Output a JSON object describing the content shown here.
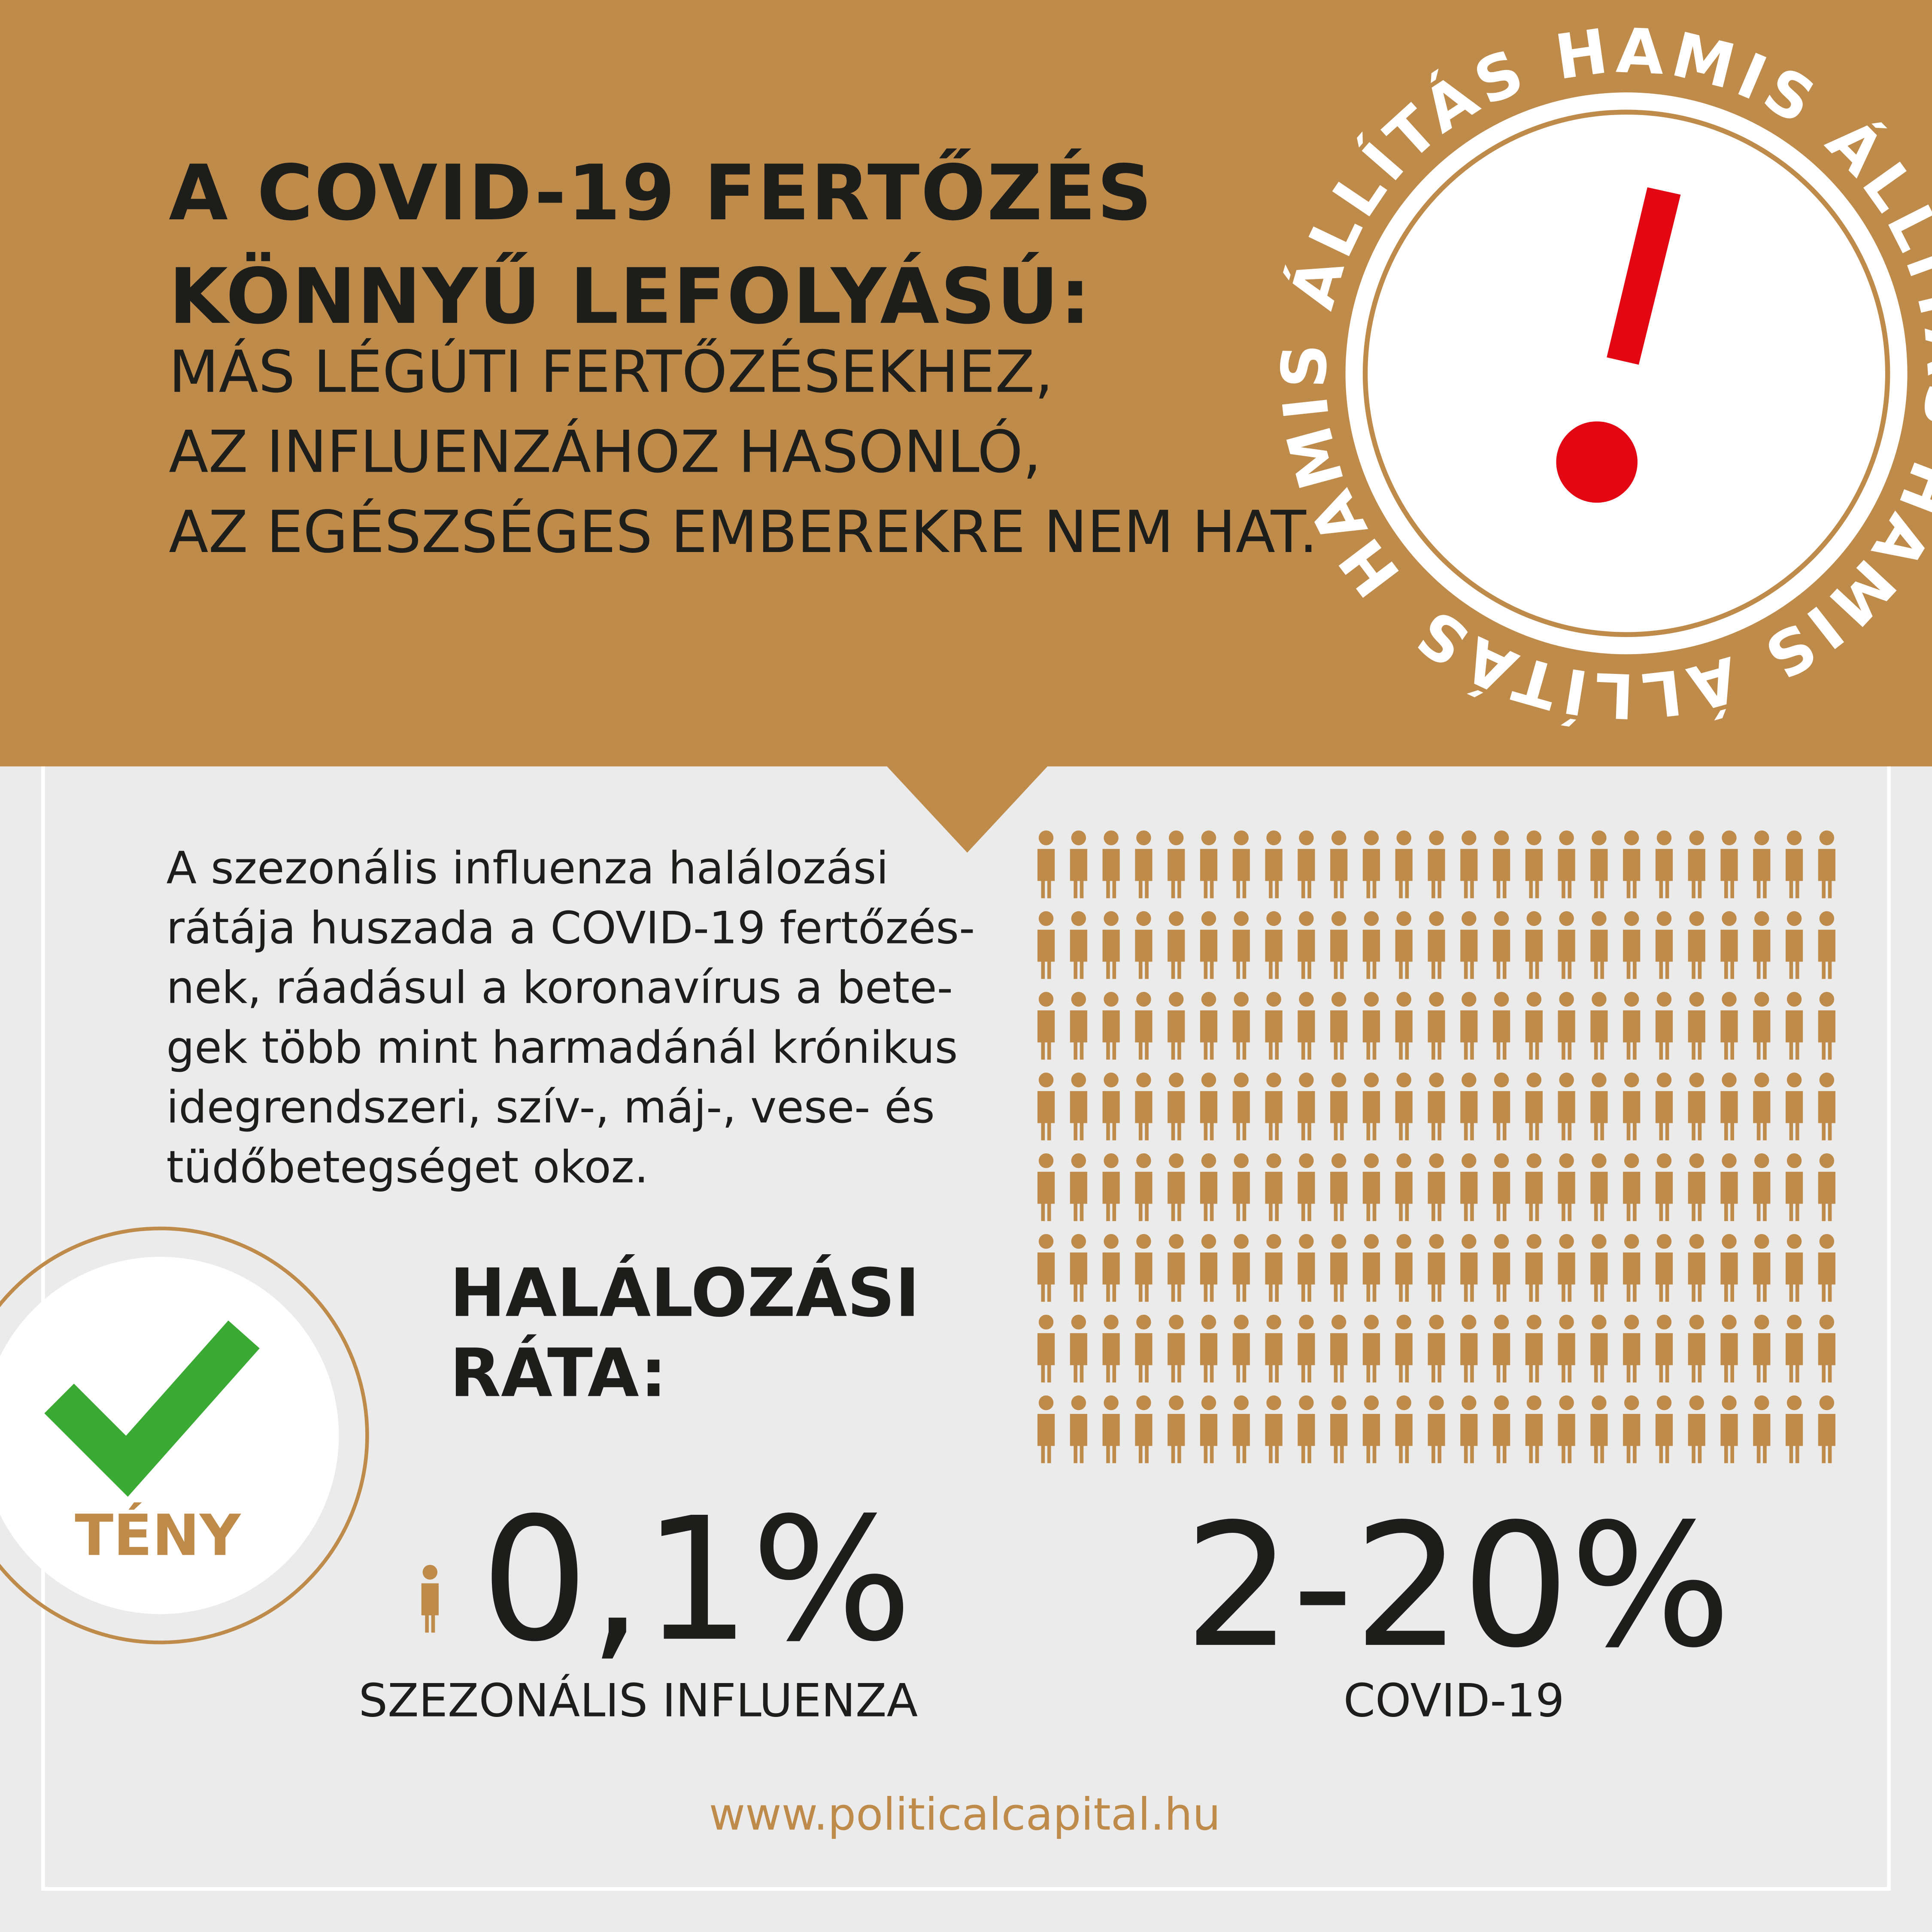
{
  "header": {
    "title": [
      "A COVID-19 FERTŐZÉS",
      "KÖNNYŰ LEFOLYÁSÚ:"
    ],
    "claim": [
      "MÁS LÉGÚTI FERTŐZÉSEKHEZ,",
      "AZ INFLUENZÁHOZ HASONLÓ,",
      "AZ EGÉSZSÉGES EMBEREKRE NEM HAT."
    ]
  },
  "stamp": {
    "text": "HAMIS ÁLLÍTÁS HAMIS ÁLLÍTÁS HAMIS ÁLLÍTÁS"
  },
  "body": {
    "paragraph": [
      "A szezonális influenza halálozási",
      "rátája huszada a COVID-19 fertőzés-",
      "nek, ráadásul a koronavírus a bete-",
      "gek több mint harmadánál krónikus",
      "idegrendszeri, szív-, máj-, vese- és",
      "tüdőbetegséget okoz."
    ]
  },
  "fact_badge": {
    "label": "TÉNY"
  },
  "rate": {
    "heading": [
      "HALÁLOZÁSI",
      "RÁTA:"
    ],
    "items": [
      {
        "value": "0,1%",
        "label": "SZEZONÁLIS INFLUENZA"
      },
      {
        "value": "2-20%",
        "label": "COVID-19"
      }
    ]
  },
  "footer": {
    "url": "www.politicalcapital.hu"
  }
}
